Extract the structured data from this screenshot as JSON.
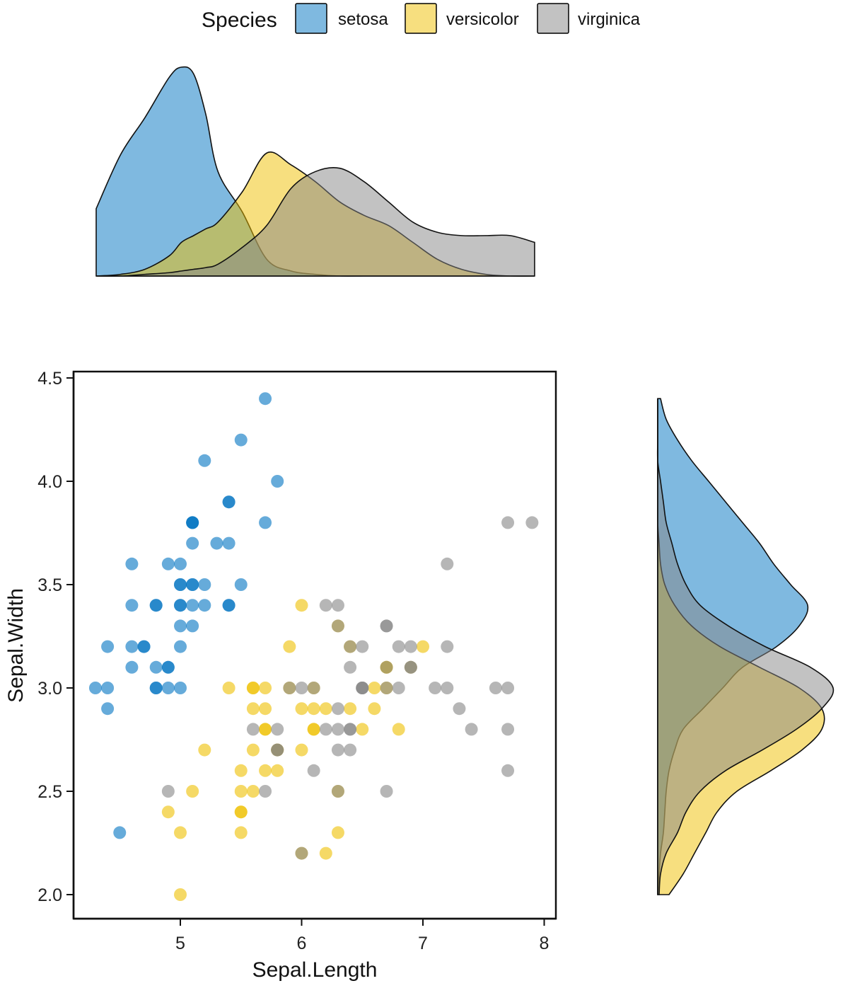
{
  "legend": {
    "title": "Species",
    "placement": "top",
    "items": [
      {
        "label": "setosa",
        "color": "#0073C2"
      },
      {
        "label": "versicolor",
        "color": "#EFC000"
      },
      {
        "label": "virginica",
        "color": "#868686"
      }
    ]
  },
  "chart_data": [
    {
      "type": "scatter",
      "xlabel": "Sepal.Length",
      "ylabel": "Sepal.Width",
      "xlim": [
        4.3,
        7.9
      ],
      "ylim": [
        2.0,
        4.4
      ],
      "xticks": [
        "5",
        "6",
        "7",
        "8"
      ],
      "yticks": [
        "2.0",
        "2.5",
        "3.0",
        "3.5",
        "4.0",
        "4.5"
      ],
      "grid": false,
      "series": [
        {
          "name": "setosa",
          "color": "#0073C2",
          "points": [
            [
              5.1,
              3.5
            ],
            [
              4.9,
              3.0
            ],
            [
              4.7,
              3.2
            ],
            [
              4.6,
              3.1
            ],
            [
              5.0,
              3.6
            ],
            [
              5.4,
              3.9
            ],
            [
              4.6,
              3.4
            ],
            [
              5.0,
              3.4
            ],
            [
              4.4,
              2.9
            ],
            [
              4.9,
              3.1
            ],
            [
              5.4,
              3.7
            ],
            [
              4.8,
              3.4
            ],
            [
              4.8,
              3.0
            ],
            [
              4.3,
              3.0
            ],
            [
              5.8,
              4.0
            ],
            [
              5.7,
              4.4
            ],
            [
              5.4,
              3.9
            ],
            [
              5.1,
              3.5
            ],
            [
              5.7,
              3.8
            ],
            [
              5.1,
              3.8
            ],
            [
              5.4,
              3.4
            ],
            [
              5.1,
              3.7
            ],
            [
              4.6,
              3.6
            ],
            [
              5.1,
              3.3
            ],
            [
              4.8,
              3.4
            ],
            [
              5.0,
              3.0
            ],
            [
              5.0,
              3.4
            ],
            [
              5.2,
              3.5
            ],
            [
              5.2,
              3.4
            ],
            [
              4.7,
              3.2
            ],
            [
              4.8,
              3.1
            ],
            [
              5.4,
              3.4
            ],
            [
              5.2,
              4.1
            ],
            [
              5.5,
              4.2
            ],
            [
              4.9,
              3.1
            ],
            [
              5.0,
              3.2
            ],
            [
              5.5,
              3.5
            ],
            [
              4.9,
              3.6
            ],
            [
              4.4,
              3.0
            ],
            [
              5.1,
              3.4
            ],
            [
              5.0,
              3.5
            ],
            [
              4.5,
              2.3
            ],
            [
              4.4,
              3.2
            ],
            [
              5.0,
              3.5
            ],
            [
              5.1,
              3.8
            ],
            [
              4.8,
              3.0
            ],
            [
              5.1,
              3.8
            ],
            [
              4.6,
              3.2
            ],
            [
              5.3,
              3.7
            ],
            [
              5.0,
              3.3
            ]
          ]
        },
        {
          "name": "versicolor",
          "color": "#EFC000",
          "points": [
            [
              7.0,
              3.2
            ],
            [
              6.4,
              3.2
            ],
            [
              6.9,
              3.1
            ],
            [
              5.5,
              2.3
            ],
            [
              6.5,
              2.8
            ],
            [
              5.7,
              2.8
            ],
            [
              6.3,
              3.3
            ],
            [
              4.9,
              2.4
            ],
            [
              6.6,
              2.9
            ],
            [
              5.2,
              2.7
            ],
            [
              5.0,
              2.0
            ],
            [
              5.9,
              3.0
            ],
            [
              6.0,
              2.2
            ],
            [
              6.1,
              2.9
            ],
            [
              5.6,
              2.9
            ],
            [
              6.7,
              3.1
            ],
            [
              5.6,
              3.0
            ],
            [
              5.8,
              2.7
            ],
            [
              6.2,
              2.2
            ],
            [
              5.6,
              2.5
            ],
            [
              5.9,
              3.2
            ],
            [
              6.1,
              2.8
            ],
            [
              6.3,
              2.5
            ],
            [
              6.1,
              2.8
            ],
            [
              6.4,
              2.9
            ],
            [
              6.6,
              3.0
            ],
            [
              6.8,
              2.8
            ],
            [
              6.7,
              3.0
            ],
            [
              6.0,
              2.9
            ],
            [
              5.7,
              2.6
            ],
            [
              5.5,
              2.4
            ],
            [
              5.5,
              2.4
            ],
            [
              5.8,
              2.7
            ],
            [
              6.0,
              2.7
            ],
            [
              5.4,
              3.0
            ],
            [
              6.0,
              3.4
            ],
            [
              6.7,
              3.1
            ],
            [
              6.3,
              2.3
            ],
            [
              5.6,
              3.0
            ],
            [
              5.5,
              2.5
            ],
            [
              5.5,
              2.6
            ],
            [
              6.1,
              3.0
            ],
            [
              5.8,
              2.6
            ],
            [
              5.0,
              2.3
            ],
            [
              5.6,
              2.7
            ],
            [
              5.7,
              3.0
            ],
            [
              5.7,
              2.9
            ],
            [
              6.2,
              2.9
            ],
            [
              5.1,
              2.5
            ],
            [
              5.7,
              2.8
            ]
          ]
        },
        {
          "name": "virginica",
          "color": "#868686",
          "points": [
            [
              6.3,
              3.3
            ],
            [
              5.8,
              2.7
            ],
            [
              7.1,
              3.0
            ],
            [
              6.3,
              2.9
            ],
            [
              6.5,
              3.0
            ],
            [
              7.6,
              3.0
            ],
            [
              4.9,
              2.5
            ],
            [
              7.3,
              2.9
            ],
            [
              6.7,
              2.5
            ],
            [
              7.2,
              3.6
            ],
            [
              6.5,
              3.2
            ],
            [
              6.4,
              2.7
            ],
            [
              6.8,
              3.0
            ],
            [
              5.7,
              2.5
            ],
            [
              5.8,
              2.8
            ],
            [
              6.4,
              3.2
            ],
            [
              6.5,
              3.0
            ],
            [
              7.7,
              3.8
            ],
            [
              7.7,
              2.6
            ],
            [
              6.0,
              2.2
            ],
            [
              6.9,
              3.2
            ],
            [
              5.6,
              2.8
            ],
            [
              7.7,
              2.8
            ],
            [
              6.3,
              2.7
            ],
            [
              6.7,
              3.3
            ],
            [
              7.2,
              3.2
            ],
            [
              6.2,
              2.8
            ],
            [
              6.1,
              3.0
            ],
            [
              6.4,
              2.8
            ],
            [
              7.2,
              3.0
            ],
            [
              7.4,
              2.8
            ],
            [
              7.9,
              3.8
            ],
            [
              6.4,
              2.8
            ],
            [
              6.3,
              2.8
            ],
            [
              6.1,
              2.6
            ],
            [
              7.7,
              3.0
            ],
            [
              6.3,
              3.4
            ],
            [
              6.4,
              3.1
            ],
            [
              6.0,
              3.0
            ],
            [
              6.9,
              3.1
            ],
            [
              6.7,
              3.1
            ],
            [
              6.9,
              3.1
            ],
            [
              5.8,
              2.7
            ],
            [
              6.8,
              3.2
            ],
            [
              6.7,
              3.3
            ],
            [
              6.7,
              3.0
            ],
            [
              6.3,
              2.5
            ],
            [
              6.5,
              3.0
            ],
            [
              6.2,
              3.4
            ],
            [
              5.9,
              3.0
            ]
          ]
        }
      ]
    },
    {
      "type": "area",
      "variable": "Sepal.Length",
      "placement": "top-marginal",
      "x": [
        4.3,
        4.5,
        4.7,
        4.9,
        5.0,
        5.1,
        5.2,
        5.3,
        5.5,
        5.7,
        5.9,
        6.1,
        6.3,
        6.5,
        6.7,
        6.9,
        7.1,
        7.3,
        7.5,
        7.7,
        7.9
      ],
      "series": [
        {
          "name": "setosa",
          "color": "#0073C2",
          "values": [
            0.4,
            0.72,
            0.94,
            1.18,
            1.24,
            1.2,
            0.96,
            0.62,
            0.38,
            0.1,
            0.03,
            0.01,
            0,
            0,
            0,
            0,
            0,
            0,
            0,
            0,
            0
          ]
        },
        {
          "name": "versicolor",
          "color": "#EFC000",
          "values": [
            0,
            0.01,
            0.04,
            0.12,
            0.2,
            0.24,
            0.28,
            0.32,
            0.5,
            0.73,
            0.66,
            0.56,
            0.44,
            0.36,
            0.3,
            0.2,
            0.1,
            0.04,
            0.01,
            0,
            0
          ]
        },
        {
          "name": "virginica",
          "color": "#868686",
          "values": [
            0,
            0,
            0.01,
            0.02,
            0.03,
            0.04,
            0.05,
            0.07,
            0.17,
            0.3,
            0.52,
            0.62,
            0.64,
            0.56,
            0.44,
            0.32,
            0.26,
            0.24,
            0.24,
            0.24,
            0.2
          ]
        }
      ]
    },
    {
      "type": "area",
      "variable": "Sepal.Width",
      "placement": "right-marginal",
      "x": [
        2.0,
        2.1,
        2.2,
        2.3,
        2.4,
        2.5,
        2.6,
        2.7,
        2.8,
        2.9,
        3.0,
        3.1,
        3.2,
        3.3,
        3.4,
        3.5,
        3.6,
        3.7,
        3.8,
        3.9,
        4.0,
        4.1,
        4.2,
        4.3,
        4.4
      ],
      "series": [
        {
          "name": "setosa",
          "color": "#0073C2",
          "values": [
            0,
            0.01,
            0.02,
            0.04,
            0.05,
            0.06,
            0.08,
            0.12,
            0.18,
            0.32,
            0.46,
            0.6,
            0.84,
            1.0,
            1.06,
            0.94,
            0.82,
            0.72,
            0.6,
            0.48,
            0.36,
            0.24,
            0.14,
            0.06,
            0.02
          ]
        },
        {
          "name": "versicolor",
          "color": "#EFC000",
          "values": [
            0.08,
            0.18,
            0.26,
            0.34,
            0.42,
            0.56,
            0.8,
            1.02,
            1.16,
            1.16,
            1.0,
            0.72,
            0.44,
            0.24,
            0.12,
            0.05,
            0.02,
            0.01,
            0,
            0,
            0,
            0,
            0,
            0,
            0
          ]
        },
        {
          "name": "virginica",
          "color": "#868686",
          "values": [
            0.01,
            0.02,
            0.06,
            0.14,
            0.2,
            0.3,
            0.48,
            0.74,
            0.98,
            1.16,
            1.24,
            1.08,
            0.76,
            0.5,
            0.3,
            0.2,
            0.14,
            0.1,
            0.06,
            0.04,
            0.02,
            0,
            0,
            0,
            0
          ]
        }
      ]
    }
  ]
}
